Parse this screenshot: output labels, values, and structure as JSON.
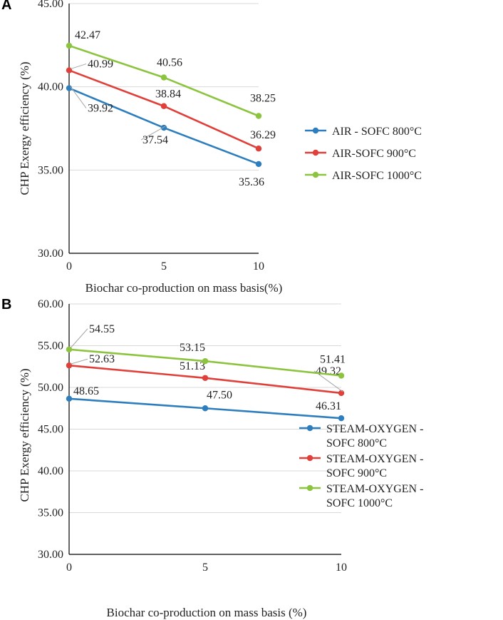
{
  "panels": [
    {
      "letter": "A"
    },
    {
      "letter": "B"
    }
  ],
  "chart_data": [
    {
      "type": "line",
      "panel": "A",
      "x": [
        0,
        5,
        10
      ],
      "xticks": [
        "0",
        "5",
        "10"
      ],
      "yticks": [
        "30.00",
        "35.00",
        "40.00",
        "45.00"
      ],
      "ylim": [
        30,
        45
      ],
      "xlabel": "Biochar co-production on mass basis(%)",
      "ylabel": "CHP Exergy efficiency (%)",
      "legend_position": "right",
      "grid": true,
      "series": [
        {
          "name": "AIR - SOFC 800°C",
          "color": "#2e7ebd",
          "values": [
            39.92,
            37.54,
            35.36
          ],
          "labels": [
            "39.92",
            "37.54",
            "35.36"
          ]
        },
        {
          "name": "AIR-SOFC 900°C",
          "color": "#e0403a",
          "values": [
            40.99,
            38.84,
            36.29
          ],
          "labels": [
            "40.99",
            "38.84",
            "36.29"
          ]
        },
        {
          "name": "AIR-SOFC 1000°C",
          "color": "#8cc43f",
          "values": [
            42.47,
            40.56,
            38.25
          ],
          "labels": [
            "42.47",
            "40.56",
            "38.25"
          ]
        }
      ]
    },
    {
      "type": "line",
      "panel": "B",
      "x": [
        0,
        5,
        10
      ],
      "xticks": [
        "0",
        "5",
        "10"
      ],
      "yticks": [
        "30.00",
        "35.00",
        "40.00",
        "45.00",
        "50.00",
        "55.00",
        "60.00"
      ],
      "ylim": [
        30,
        60
      ],
      "xlabel": "Biochar co-production on mass basis (%)",
      "ylabel": "CHP Exergy efficiency (%)",
      "legend_position": "right",
      "grid": true,
      "series": [
        {
          "name": "STEAM-OXYGEN - SOFC 800°C",
          "legend_lines": [
            "STEAM-OXYGEN -",
            "SOFC 800°C"
          ],
          "color": "#2e7ebd",
          "values": [
            48.65,
            47.5,
            46.31
          ],
          "labels": [
            "48.65",
            "47.50",
            "46.31"
          ]
        },
        {
          "name": "STEAM-OXYGEN - SOFC 900°C",
          "legend_lines": [
            "STEAM-OXYGEN -",
            "SOFC 900°C"
          ],
          "color": "#e0403a",
          "values": [
            52.63,
            51.13,
            49.32
          ],
          "labels": [
            "52.63",
            "51.13",
            "49.32"
          ]
        },
        {
          "name": "STEAM-OXYGEN - SOFC 1000°C",
          "legend_lines": [
            "STEAM-OXYGEN -",
            "SOFC 1000°C"
          ],
          "color": "#8cc43f",
          "values": [
            54.55,
            53.15,
            51.41
          ],
          "labels": [
            "54.55",
            "53.15",
            "51.41"
          ]
        }
      ]
    }
  ]
}
